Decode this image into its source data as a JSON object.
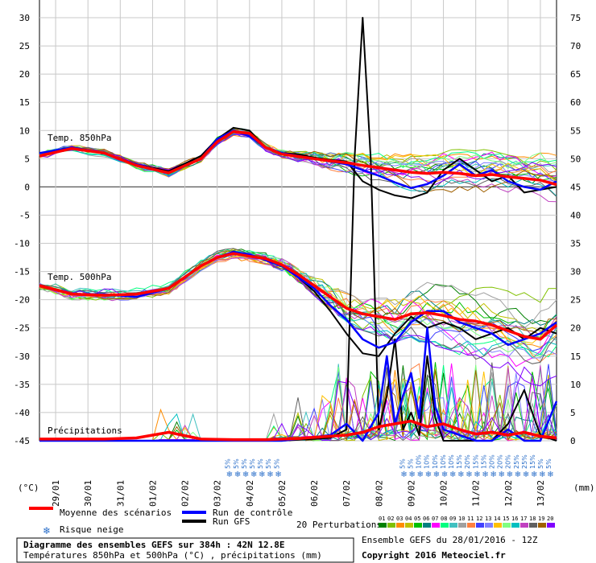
{
  "chart_data": {
    "type": "line",
    "title": "Diagramme des ensembles GEFS sur 384h : 42N 12.8E",
    "subtitle": "Températures 850hPa et 500hPa (°C) , précipitations (mm)",
    "source_line": "Ensemble GEFS du 28/01/2016 - 12Z",
    "copyright": "Copyright 2016 Meteociel.fr",
    "left_axis": {
      "unit": "(°C)",
      "ticks": [
        30,
        25,
        20,
        15,
        10,
        5,
        0,
        -5,
        -10,
        -15,
        -20,
        -25,
        -30,
        -35,
        -40,
        -45
      ],
      "range": [
        -45,
        30
      ]
    },
    "right_axis": {
      "unit": "(mm)",
      "ticks": [
        75,
        70,
        65,
        60,
        55,
        50,
        45,
        40,
        35,
        30,
        25,
        20,
        15,
        10,
        5,
        0
      ],
      "range": [
        0,
        75
      ]
    },
    "x_labels": [
      "29/01",
      "30/01",
      "31/01",
      "01/02",
      "02/02",
      "03/02",
      "04/02",
      "05/02",
      "06/02",
      "07/02",
      "08/02",
      "09/02",
      "10/02",
      "11/02",
      "12/02",
      "13/02"
    ],
    "panel_labels": {
      "t850": "Temp. 850hPa",
      "t500": "Temp. 500hPa",
      "precip": "Précipitations"
    },
    "snow_risk": {
      "group1": [
        "5%",
        "5%",
        "5%",
        "5%",
        "5%",
        "5%",
        "5%"
      ],
      "group2": [
        "5%",
        "5%",
        "10%",
        "10%",
        "10%",
        "10%",
        "10%",
        "15%",
        "20%",
        "15%",
        "15%",
        "20%",
        "20%",
        "20%",
        "25%",
        "25%",
        "15%",
        "5%",
        "5%"
      ]
    },
    "legend": {
      "mean": "Moyenne des scénarios",
      "control": "Run de contrôle",
      "gfs": "Run GFS",
      "snow": "Risque neige",
      "perturbations": "20 Perturbations",
      "pert_numbers": [
        "01",
        "02",
        "03",
        "04",
        "05",
        "06",
        "07",
        "08",
        "09",
        "10",
        "11",
        "12",
        "13",
        "14",
        "15",
        "16",
        "17",
        "18",
        "19",
        "20"
      ]
    },
    "series": [
      {
        "name": "Moyenne des scénarios",
        "panel": "t850",
        "x": [
          0,
          4,
          8,
          12,
          16,
          20,
          22,
          24,
          26,
          28,
          30,
          32,
          34,
          36,
          38,
          40,
          42,
          44,
          46,
          48,
          50,
          52,
          54,
          56,
          58,
          60,
          62,
          64
        ],
        "y": [
          5.5,
          6.8,
          6,
          3.8,
          2.5,
          5,
          8,
          9.8,
          9.5,
          7,
          5.8,
          5.4,
          5.0,
          4.6,
          4.3,
          3.8,
          3.4,
          3.0,
          2.6,
          2.4,
          2.6,
          2.4,
          2.0,
          2.2,
          1.8,
          1.5,
          1.2,
          0.4
        ]
      },
      {
        "name": "Run de contrôle",
        "panel": "t850",
        "x": [
          0,
          4,
          8,
          12,
          16,
          20,
          22,
          24,
          26,
          28,
          30,
          32,
          34,
          36,
          38,
          40,
          42,
          44,
          46,
          48,
          50,
          52,
          54,
          56,
          58,
          60,
          62,
          64
        ],
        "y": [
          6,
          7,
          6,
          4,
          2.5,
          5,
          8.5,
          10,
          9,
          7,
          6,
          5.5,
          5,
          4.5,
          4,
          3,
          2,
          0.8,
          -0.2,
          0.5,
          2,
          4,
          2,
          3,
          1,
          0,
          -0.5,
          1
        ]
      },
      {
        "name": "Run GFS",
        "panel": "t850",
        "x": [
          0,
          4,
          8,
          12,
          16,
          20,
          22,
          24,
          26,
          28,
          30,
          32,
          34,
          36,
          38,
          40,
          42,
          44,
          46,
          48,
          50,
          52,
          54,
          56,
          58,
          60,
          62,
          64
        ],
        "y": [
          5.5,
          7,
          6,
          4,
          2.8,
          5.5,
          8.5,
          10.5,
          10,
          7,
          6,
          5.8,
          5.2,
          4.8,
          4.5,
          1,
          -0.5,
          -1.5,
          -2,
          -1,
          3,
          5,
          3,
          1,
          2,
          -1,
          -0.5,
          0
        ]
      },
      {
        "name": "Moyenne des scénarios",
        "panel": "t500",
        "x": [
          0,
          4,
          8,
          12,
          16,
          20,
          22,
          24,
          26,
          28,
          30,
          32,
          34,
          36,
          38,
          40,
          42,
          44,
          46,
          48,
          50,
          52,
          54,
          56,
          58,
          60,
          62,
          64
        ],
        "y": [
          -17.5,
          -19,
          -19.2,
          -19,
          -18,
          -14,
          -12.5,
          -11.8,
          -12.3,
          -12.7,
          -13.8,
          -15.5,
          -17.5,
          -19.5,
          -21.5,
          -22.5,
          -23,
          -23.5,
          -22.5,
          -22.3,
          -22.8,
          -23.5,
          -23.8,
          -24.5,
          -25.5,
          -26.5,
          -27,
          -24.5
        ]
      },
      {
        "name": "Run de contrôle",
        "panel": "t500",
        "x": [
          0,
          4,
          8,
          12,
          16,
          20,
          22,
          24,
          26,
          28,
          30,
          32,
          34,
          36,
          38,
          40,
          42,
          44,
          46,
          48,
          50,
          52,
          54,
          56,
          58,
          60,
          62,
          64
        ],
        "y": [
          -17.5,
          -19,
          -19,
          -19.5,
          -18,
          -14,
          -12.5,
          -11.5,
          -12,
          -13,
          -14,
          -16,
          -18,
          -21,
          -23.5,
          -27,
          -28.5,
          -27.5,
          -24,
          -22,
          -22,
          -24,
          -25,
          -26,
          -28,
          -27,
          -26,
          -24
        ]
      },
      {
        "name": "Run GFS",
        "panel": "t500",
        "x": [
          0,
          4,
          8,
          12,
          16,
          20,
          22,
          24,
          26,
          28,
          30,
          32,
          34,
          36,
          38,
          40,
          42,
          44,
          46,
          48,
          50,
          52,
          54,
          56,
          58,
          60,
          62,
          64
        ],
        "y": [
          -17.5,
          -19,
          -19,
          -19.5,
          -18,
          -14,
          -12.5,
          -11.5,
          -12,
          -13,
          -14,
          -16,
          -18.5,
          -22,
          -26,
          -29.5,
          -30,
          -26,
          -23,
          -25,
          -24,
          -25,
          -27,
          -26,
          -25,
          -27,
          -25,
          -26
        ]
      },
      {
        "name": "Moyenne des scénarios",
        "panel": "precip",
        "x": [
          0,
          4,
          8,
          12,
          16,
          20,
          24,
          28,
          32,
          36,
          38,
          40,
          42,
          44,
          46,
          48,
          50,
          52,
          54,
          56,
          58,
          60,
          62,
          64
        ],
        "y": [
          0.3,
          0.3,
          0.3,
          0.5,
          1.5,
          0.3,
          0.2,
          0.2,
          0.4,
          0.8,
          1,
          1.5,
          2.5,
          3,
          3.5,
          2.5,
          3,
          2,
          1.2,
          1.5,
          1,
          1.5,
          0.8,
          0.5
        ]
      },
      {
        "name": "Run de contrôle",
        "panel": "precip",
        "x": [
          0,
          10,
          20,
          30,
          36,
          38,
          40,
          42,
          43,
          44,
          45,
          46,
          47,
          48,
          49,
          50,
          52,
          54,
          56,
          58,
          60,
          62,
          64
        ],
        "y": [
          0,
          0,
          0,
          0,
          1,
          3,
          0,
          5,
          15,
          3,
          8,
          12,
          4,
          20,
          6,
          2,
          1,
          0,
          0,
          2,
          0,
          0,
          7
        ]
      },
      {
        "name": "Run GFS",
        "panel": "precip",
        "x": [
          0,
          10,
          20,
          30,
          36,
          38,
          39,
          40,
          41,
          42,
          43,
          44,
          45,
          46,
          47,
          48,
          49,
          50,
          52,
          54,
          56,
          58,
          60,
          62,
          64
        ],
        "y": [
          0,
          0,
          0,
          0,
          0.5,
          2,
          50,
          75,
          50,
          2,
          8,
          18,
          2,
          5,
          1,
          15,
          4,
          0,
          0,
          0,
          0,
          3,
          9,
          1,
          0
        ]
      }
    ]
  }
}
